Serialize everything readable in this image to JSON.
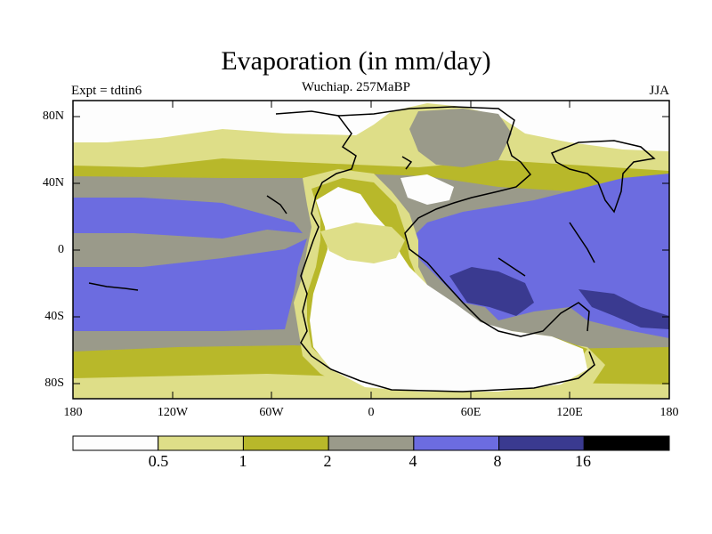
{
  "header": {
    "title": "Evaporation (in mm/day)",
    "subtitle": "Wuchiap. 257MaBP",
    "experiment": "Expt = tdtin6",
    "season": "JJA"
  },
  "axes": {
    "y_ticks": [
      "80N",
      "40N",
      "0",
      "40S",
      "80S"
    ],
    "x_ticks": [
      "180",
      "120W",
      "60W",
      "0",
      "60E",
      "120E",
      "180"
    ]
  },
  "colorbar": {
    "levels": [
      "0.5",
      "1",
      "2",
      "4",
      "8",
      "16"
    ],
    "colors": [
      "#fdfdfd",
      "#dede88",
      "#b8b82a",
      "#9a9a8a",
      "#6c6ce0",
      "#3a3a90",
      "#000000"
    ]
  },
  "map": {
    "background_color": "#9a9a8a",
    "land_color": "#fdfdfd",
    "coast_color": "#000000"
  }
}
